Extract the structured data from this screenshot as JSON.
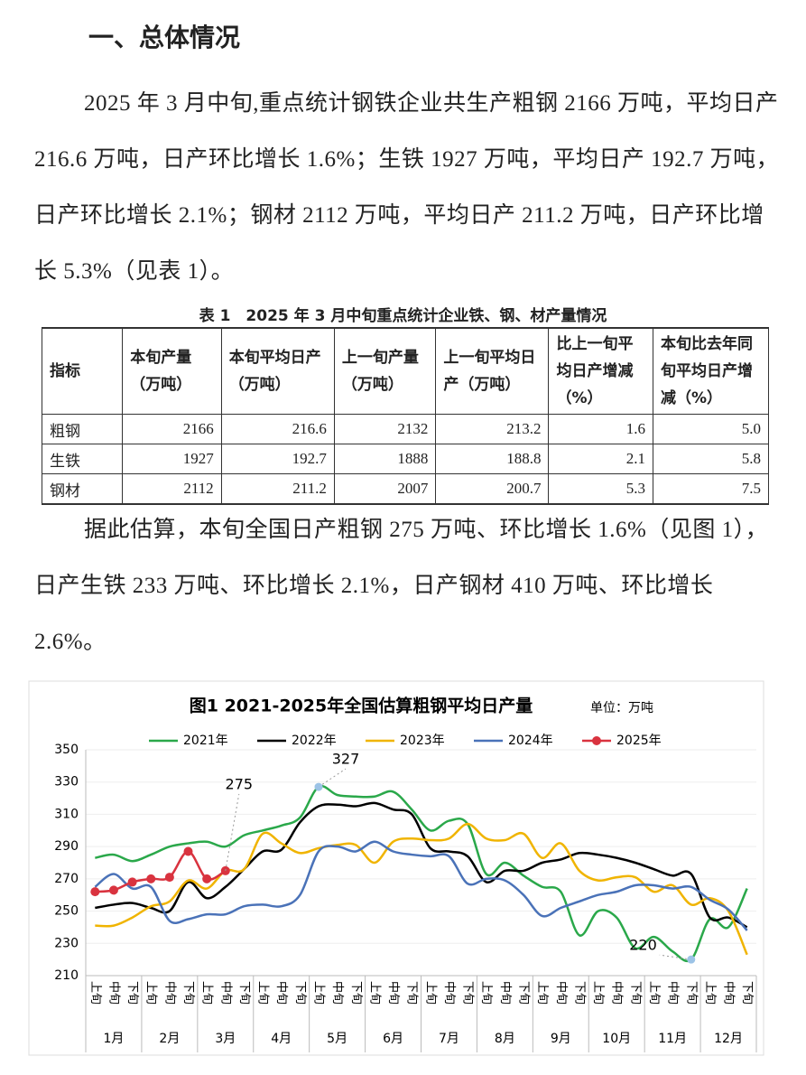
{
  "heading": "一、总体情况",
  "paragraphs": [
    "2025 年 3 月中旬,重点统计钢铁企业共生产粗钢 2166 万吨，平均日产 216.6 万吨，日产环比增长 1.6%；生铁 1927 万吨，平均日产 192.7 万吨，日产环比增长 2.1%；钢材 2112 万吨，平均日产 211.2 万吨，日产环比增长 5.3%（见表 1）。",
    "据此估算，本旬全国日产粗钢 275 万吨、环比增长 1.6%（见图 1），日产生铁 233 万吨、环比增长 2.1%，日产钢材 410 万吨、环比增长 2.6%。"
  ],
  "table": {
    "caption": "表 1　2025 年 3 月中旬重点统计企业铁、钢、材产量情况",
    "header": [
      "指标",
      "本旬产量（万吨）",
      "本旬平均日产（万吨）",
      "上一旬产量（万吨）",
      "上一旬平均日产（万吨）",
      "比上一旬平均日产增减（%）",
      "本旬比去年同旬平均日产增减（%）"
    ],
    "rows": [
      [
        "粗钢",
        "2166",
        "216.6",
        "2132",
        "213.2",
        "1.6",
        "5.0"
      ],
      [
        "生铁",
        "1927",
        "192.7",
        "1888",
        "188.8",
        "2.1",
        "5.8"
      ],
      [
        "钢材",
        "2112",
        "211.2",
        "2007",
        "200.7",
        "5.3",
        "7.5"
      ]
    ]
  },
  "chart_data": {
    "type": "line",
    "title": "图1 2021-2025年全国估算粗钢平均日产量",
    "unit": "单位：万吨",
    "categories": [
      "上旬",
      "中旬",
      "下旬",
      "上旬",
      "中旬",
      "下旬",
      "上旬",
      "中旬",
      "下旬",
      "上旬",
      "中旬",
      "下旬",
      "上旬",
      "中旬",
      "下旬",
      "上旬",
      "中旬",
      "下旬",
      "上旬",
      "中旬",
      "下旬",
      "上旬",
      "中旬",
      "下旬",
      "上旬",
      "中旬",
      "下旬",
      "上旬",
      "中旬",
      "下旬",
      "上旬",
      "中旬",
      "下旬",
      "上旬",
      "中旬",
      "下旬"
    ],
    "months": [
      "1月",
      "2月",
      "3月",
      "4月",
      "5月",
      "6月",
      "7月",
      "8月",
      "9月",
      "10月",
      "11月",
      "12月"
    ],
    "ylim": [
      210,
      350
    ],
    "yticks": [
      210,
      230,
      250,
      270,
      290,
      310,
      330,
      350
    ],
    "grid": true,
    "series": [
      {
        "name": "2021年",
        "color": "#2aa84a",
        "values": [
          283,
          285,
          281,
          285,
          290,
          292,
          293,
          290,
          297,
          300,
          303,
          308,
          327,
          322,
          321,
          321,
          324,
          313,
          300,
          306,
          304,
          273,
          280,
          272,
          265,
          262,
          235,
          250,
          246,
          227,
          234,
          225,
          220,
          245,
          240,
          264
        ]
      },
      {
        "name": "2022年",
        "color": "#000000",
        "values": [
          252,
          254,
          255,
          252,
          250,
          268,
          258,
          265,
          276,
          287,
          288,
          305,
          315,
          316,
          315,
          317,
          313,
          310,
          289,
          287,
          284,
          268,
          275,
          275,
          280,
          282,
          286,
          285,
          283,
          280,
          276,
          272,
          273,
          246,
          246,
          240
        ]
      },
      {
        "name": "2023年",
        "color": "#f0b400",
        "values": [
          241,
          241,
          246,
          253,
          256,
          269,
          264,
          275,
          276,
          298,
          292,
          286,
          289,
          291,
          291,
          280,
          293,
          295,
          294,
          295,
          304,
          295,
          294,
          298,
          283,
          292,
          275,
          269,
          271,
          271,
          262,
          266,
          254,
          258,
          250,
          223
        ]
      },
      {
        "name": "2024年",
        "color": "#4a72b8",
        "values": [
          265,
          273,
          264,
          265,
          244,
          245,
          248,
          248,
          253,
          254,
          253,
          260,
          287,
          290,
          287,
          293,
          287,
          285,
          284,
          284,
          267,
          270,
          269,
          260,
          247,
          252,
          256,
          260,
          262,
          266,
          266,
          264,
          265,
          257,
          251,
          238
        ]
      },
      {
        "name": "2025年",
        "color": "#d9333f",
        "values": [
          262,
          263,
          268,
          270,
          271,
          287,
          270,
          275,
          null,
          null,
          null,
          null,
          null,
          null,
          null,
          null,
          null,
          null,
          null,
          null,
          null,
          null,
          null,
          null,
          null,
          null,
          null,
          null,
          null,
          null,
          null,
          null,
          null,
          null,
          null,
          null
        ]
      }
    ],
    "annotations": [
      275,
      327,
      220
    ]
  }
}
